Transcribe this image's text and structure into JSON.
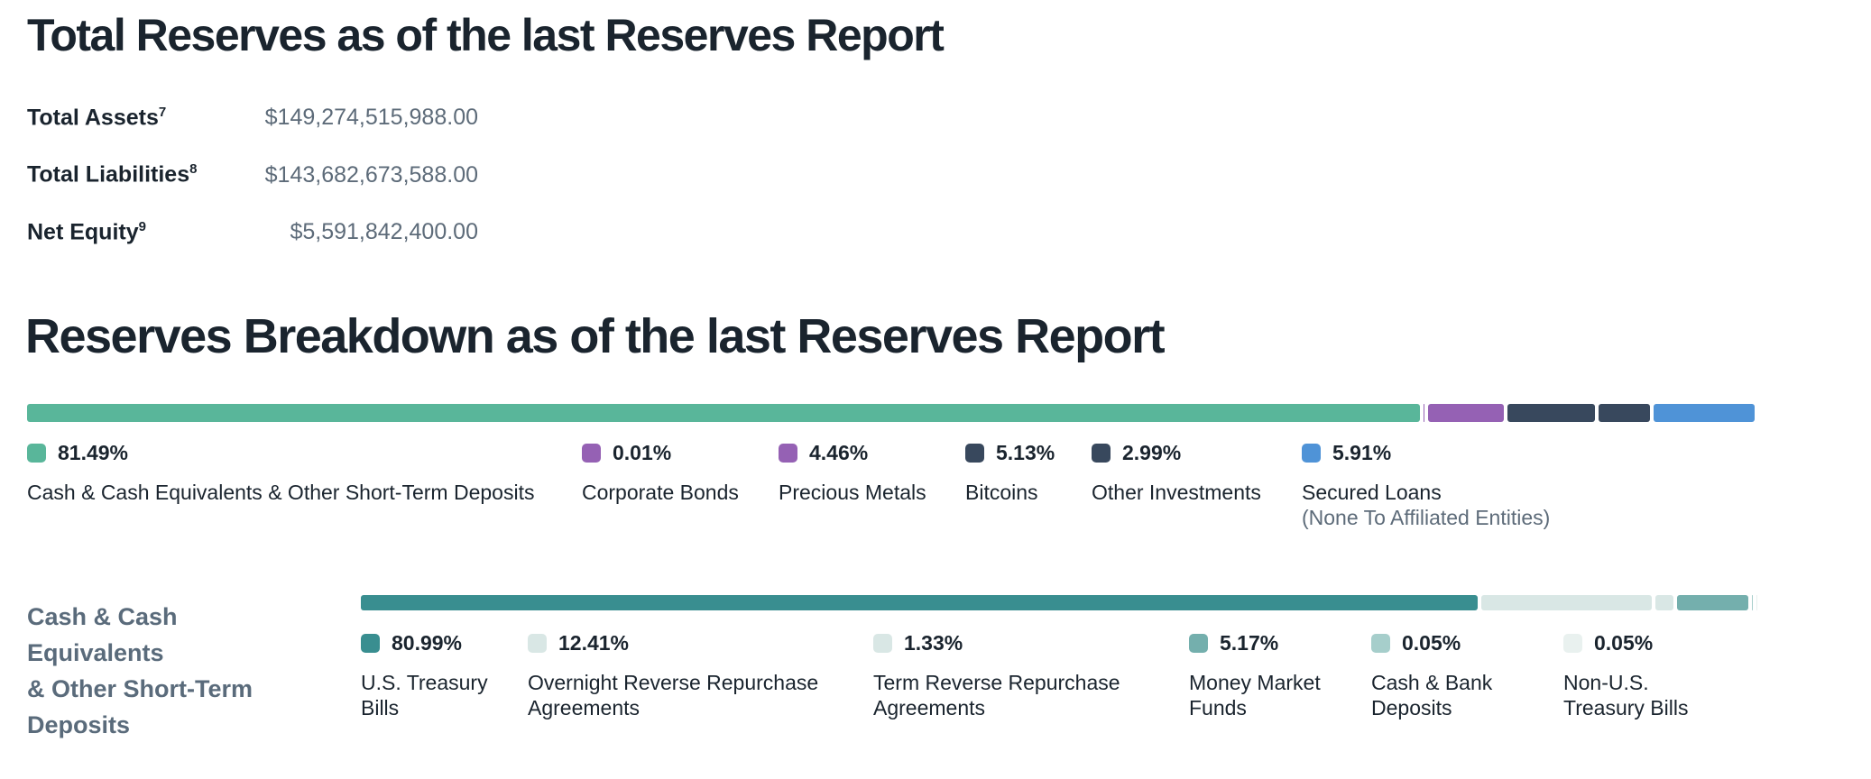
{
  "reserves": {
    "title": "Total Reserves as of the last Reserves Report",
    "rows": [
      {
        "label": "Total Assets",
        "footnote": "7",
        "value": "$149,274,515,988.00"
      },
      {
        "label": "Total Liabilities",
        "footnote": "8",
        "value": "$143,682,673,588.00"
      },
      {
        "label": "Net Equity",
        "footnote": "9",
        "value": "$5,591,842,400.00"
      }
    ]
  },
  "breakdown": {
    "title": "Reserves Breakdown as of the last Reserves Report"
  },
  "cash_section": {
    "title": "Cash & Cash Equivalents & Other Short-Term Deposits",
    "title_lines": [
      "Cash & Cash Equivalents",
      "& Other Short-Term",
      "Deposits"
    ]
  },
  "colors": {
    "green": "#59b69a",
    "purple": "#9561b4",
    "navy": "#38485d",
    "blue": "#4f93d7",
    "teal_dark": "#398e90",
    "teal_pale": "#d9e7e5",
    "teal_medium": "#74afad",
    "teal_light": "#a6cecb",
    "teal_faint": "#e9f1ef"
  },
  "chart_data": [
    {
      "type": "bar",
      "variant": "stacked-horizontal",
      "title": "Reserves Breakdown as of the last Reserves Report",
      "unit": "%",
      "total": 100,
      "legend_position": "below",
      "series": [
        {
          "name": "Cash & Cash Equivalents & Other Short-Term Deposits",
          "value": 81.49,
          "pct_label": "81.49%",
          "color": "#59b69a",
          "label_lines": [
            "Cash & Cash Equivalents & Other Short-Term Deposits"
          ]
        },
        {
          "name": "Corporate Bonds",
          "value": 0.01,
          "pct_label": "0.01%",
          "color": "#9561b4",
          "label_lines": [
            "Corporate Bonds"
          ]
        },
        {
          "name": "Precious Metals",
          "value": 4.46,
          "pct_label": "4.46%",
          "color": "#9561b4",
          "label_lines": [
            "Precious Metals"
          ]
        },
        {
          "name": "Bitcoins",
          "value": 5.13,
          "pct_label": "5.13%",
          "color": "#38485d",
          "label_lines": [
            "Bitcoins"
          ]
        },
        {
          "name": "Other Investments",
          "value": 2.99,
          "pct_label": "2.99%",
          "color": "#38485d",
          "label_lines": [
            "Other Investments"
          ]
        },
        {
          "name": "Secured Loans",
          "value": 5.91,
          "pct_label": "5.91%",
          "color": "#4f93d7",
          "label_lines": [
            "Secured Loans"
          ],
          "sublabel": "(None To Affiliated Entities)"
        }
      ]
    },
    {
      "type": "bar",
      "variant": "stacked-horizontal",
      "title": "Cash & Cash Equivalents & Other Short-Term Deposits",
      "unit": "%",
      "total": 100,
      "legend_position": "below",
      "series": [
        {
          "name": "U.S. Treasury Bills",
          "value": 80.99,
          "pct_label": "80.99%",
          "color": "#398e90",
          "label_lines": [
            "U.S. Treasury",
            "Bills"
          ]
        },
        {
          "name": "Overnight Reverse Repurchase Agreements",
          "value": 12.41,
          "pct_label": "12.41%",
          "color": "#d9e7e5",
          "label_lines": [
            "Overnight Reverse Repurchase",
            "Agreements"
          ]
        },
        {
          "name": "Term Reverse Repurchase Agreements",
          "value": 1.33,
          "pct_label": "1.33%",
          "color": "#d9e7e5",
          "label_lines": [
            "Term Reverse Repurchase",
            "Agreements"
          ]
        },
        {
          "name": "Money Market Funds",
          "value": 5.17,
          "pct_label": "5.17%",
          "color": "#74afad",
          "label_lines": [
            "Money Market",
            "Funds"
          ]
        },
        {
          "name": "Cash & Bank Deposits",
          "value": 0.05,
          "pct_label": "0.05%",
          "color": "#a6cecb",
          "label_lines": [
            "Cash & Bank",
            "Deposits"
          ]
        },
        {
          "name": "Non-U.S. Treasury Bills",
          "value": 0.05,
          "pct_label": "0.05%",
          "color": "#e9f1ef",
          "label_lines": [
            "Non-U.S.",
            "Treasury Bills"
          ]
        }
      ]
    }
  ]
}
